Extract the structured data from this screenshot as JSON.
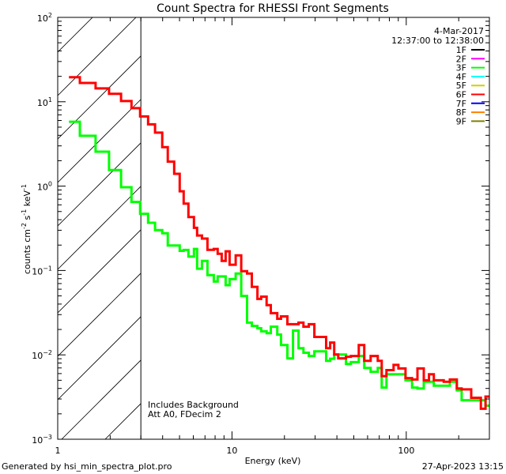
{
  "chart_data": {
    "type": "line",
    "step": true,
    "title": "Count Spectra for RHESSI Front Segments",
    "xlabel": "Energy (keV)",
    "ylabel": {
      "base": "counts cm",
      "e1": "-2",
      "mid1": " s",
      "e2": "-1",
      "mid2": " keV",
      "e3": "-1"
    },
    "xscale": "log",
    "yscale": "log",
    "xlim": [
      1,
      300
    ],
    "ylim": [
      0.001,
      100
    ],
    "xticks": [
      {
        "value": 1,
        "label": "1"
      },
      {
        "value": 10,
        "label": "10"
      },
      {
        "value": 100,
        "label": "100"
      }
    ],
    "yticks": [
      {
        "value": 100,
        "base": "10",
        "exp": "2"
      },
      {
        "value": 10,
        "base": "10",
        "exp": "1"
      },
      {
        "value": 1,
        "base": "10",
        "exp": "0"
      },
      {
        "value": 0.1,
        "base": "10",
        "exp": "−1"
      },
      {
        "value": 0.01,
        "base": "10",
        "exp": "−2"
      },
      {
        "value": 0.001,
        "base": "10",
        "exp": "−3"
      }
    ],
    "hatched_region": [
      1,
      3
    ],
    "energy_edges": [
      1.16,
      1.34,
      1.65,
      1.97,
      2.31,
      2.65,
      2.97,
      3.3,
      3.62,
      3.98,
      4.28,
      4.66,
      5.01,
      5.28,
      5.62,
      6.05,
      6.31,
      6.72,
      7.23,
      7.86,
      8.28,
      8.73,
      9.2,
      9.69,
      10.5,
      11.3,
      12.2,
      13.0,
      14.0,
      14.7,
      15.8,
      16.7,
      18.2,
      19.1,
      20.8,
      22.4,
      24.1,
      25.7,
      27.6,
      29.7,
      34.7,
      36.6,
      38.6,
      40.7,
      45.1,
      48.1,
      53.4,
      57.4,
      62.5,
      68.6,
      72.3,
      77.0,
      84.6,
      90.1,
      99,
      108,
      116,
      126,
      135,
      144,
      164,
      178,
      195,
      208,
      236,
      254,
      268,
      285,
      300
    ],
    "series": [
      {
        "name": "3F",
        "color": "#00ff00",
        "values": [
          5.8,
          3.95,
          2.56,
          1.55,
          0.97,
          0.65,
          0.47,
          0.368,
          0.301,
          0.276,
          0.198,
          0.198,
          0.171,
          0.175,
          0.146,
          0.18,
          0.105,
          0.13,
          0.088,
          0.074,
          0.085,
          0.085,
          0.067,
          0.079,
          0.092,
          0.05,
          0.0241,
          0.022,
          0.0207,
          0.019,
          0.0181,
          0.0216,
          0.0174,
          0.0131,
          0.0091,
          0.0194,
          0.012,
          0.0106,
          0.0097,
          0.011,
          0.0085,
          0.009,
          0.0101,
          0.0101,
          0.0078,
          0.0082,
          0.0097,
          0.007,
          0.0063,
          0.007,
          0.0041,
          0.0059,
          0.0059,
          0.0059,
          0.005,
          0.0041,
          0.004,
          0.0048,
          0.0048,
          0.0043,
          0.0043,
          0.0048,
          0.0038,
          0.0029,
          0.0029,
          0.0029,
          0.0029,
          0.0025
        ]
      },
      {
        "name": "6F",
        "color": "#ff0000",
        "values": [
          19.5,
          16.7,
          14.4,
          12.4,
          10.2,
          8.4,
          6.7,
          5.4,
          4.3,
          2.9,
          1.95,
          1.4,
          0.87,
          0.62,
          0.43,
          0.32,
          0.26,
          0.239,
          0.176,
          0.18,
          0.158,
          0.13,
          0.169,
          0.117,
          0.151,
          0.098,
          0.092,
          0.064,
          0.046,
          0.049,
          0.0388,
          0.0312,
          0.0268,
          0.0286,
          0.0231,
          0.0231,
          0.0241,
          0.0216,
          0.0231,
          0.0163,
          0.012,
          0.014,
          0.0101,
          0.0091,
          0.0095,
          0.0097,
          0.0131,
          0.0085,
          0.0097,
          0.0085,
          0.0056,
          0.0066,
          0.0076,
          0.0069,
          0.0053,
          0.0051,
          0.0069,
          0.005,
          0.0059,
          0.005,
          0.0048,
          0.0051,
          0.004,
          0.0039,
          0.0031,
          0.0031,
          0.0023,
          0.0032
        ]
      }
    ],
    "legend": {
      "position": "top-right",
      "date": "4-Mar-2017",
      "time_range": "12:37:00 to 12:38:00",
      "entries": [
        {
          "label": "1F",
          "color": "#000000"
        },
        {
          "label": "2F",
          "color": "#ff00ff"
        },
        {
          "label": "3F",
          "color": "#00ff00"
        },
        {
          "label": "4F",
          "color": "#00ffff"
        },
        {
          "label": "5F",
          "color": "#d0d000"
        },
        {
          "label": "6F",
          "color": "#ff0000"
        },
        {
          "label": "7F",
          "color": "#0000ff"
        },
        {
          "label": "8F",
          "color": "#ff8000"
        },
        {
          "label": "9F",
          "color": "#808000"
        }
      ]
    },
    "annotations": [
      "Includes Background",
      "Att A0, FDecim 2"
    ]
  },
  "footer": {
    "generated_by": "Generated by hsi_min_spectra_plot.pro",
    "timestamp": "27-Apr-2023 13:15"
  }
}
